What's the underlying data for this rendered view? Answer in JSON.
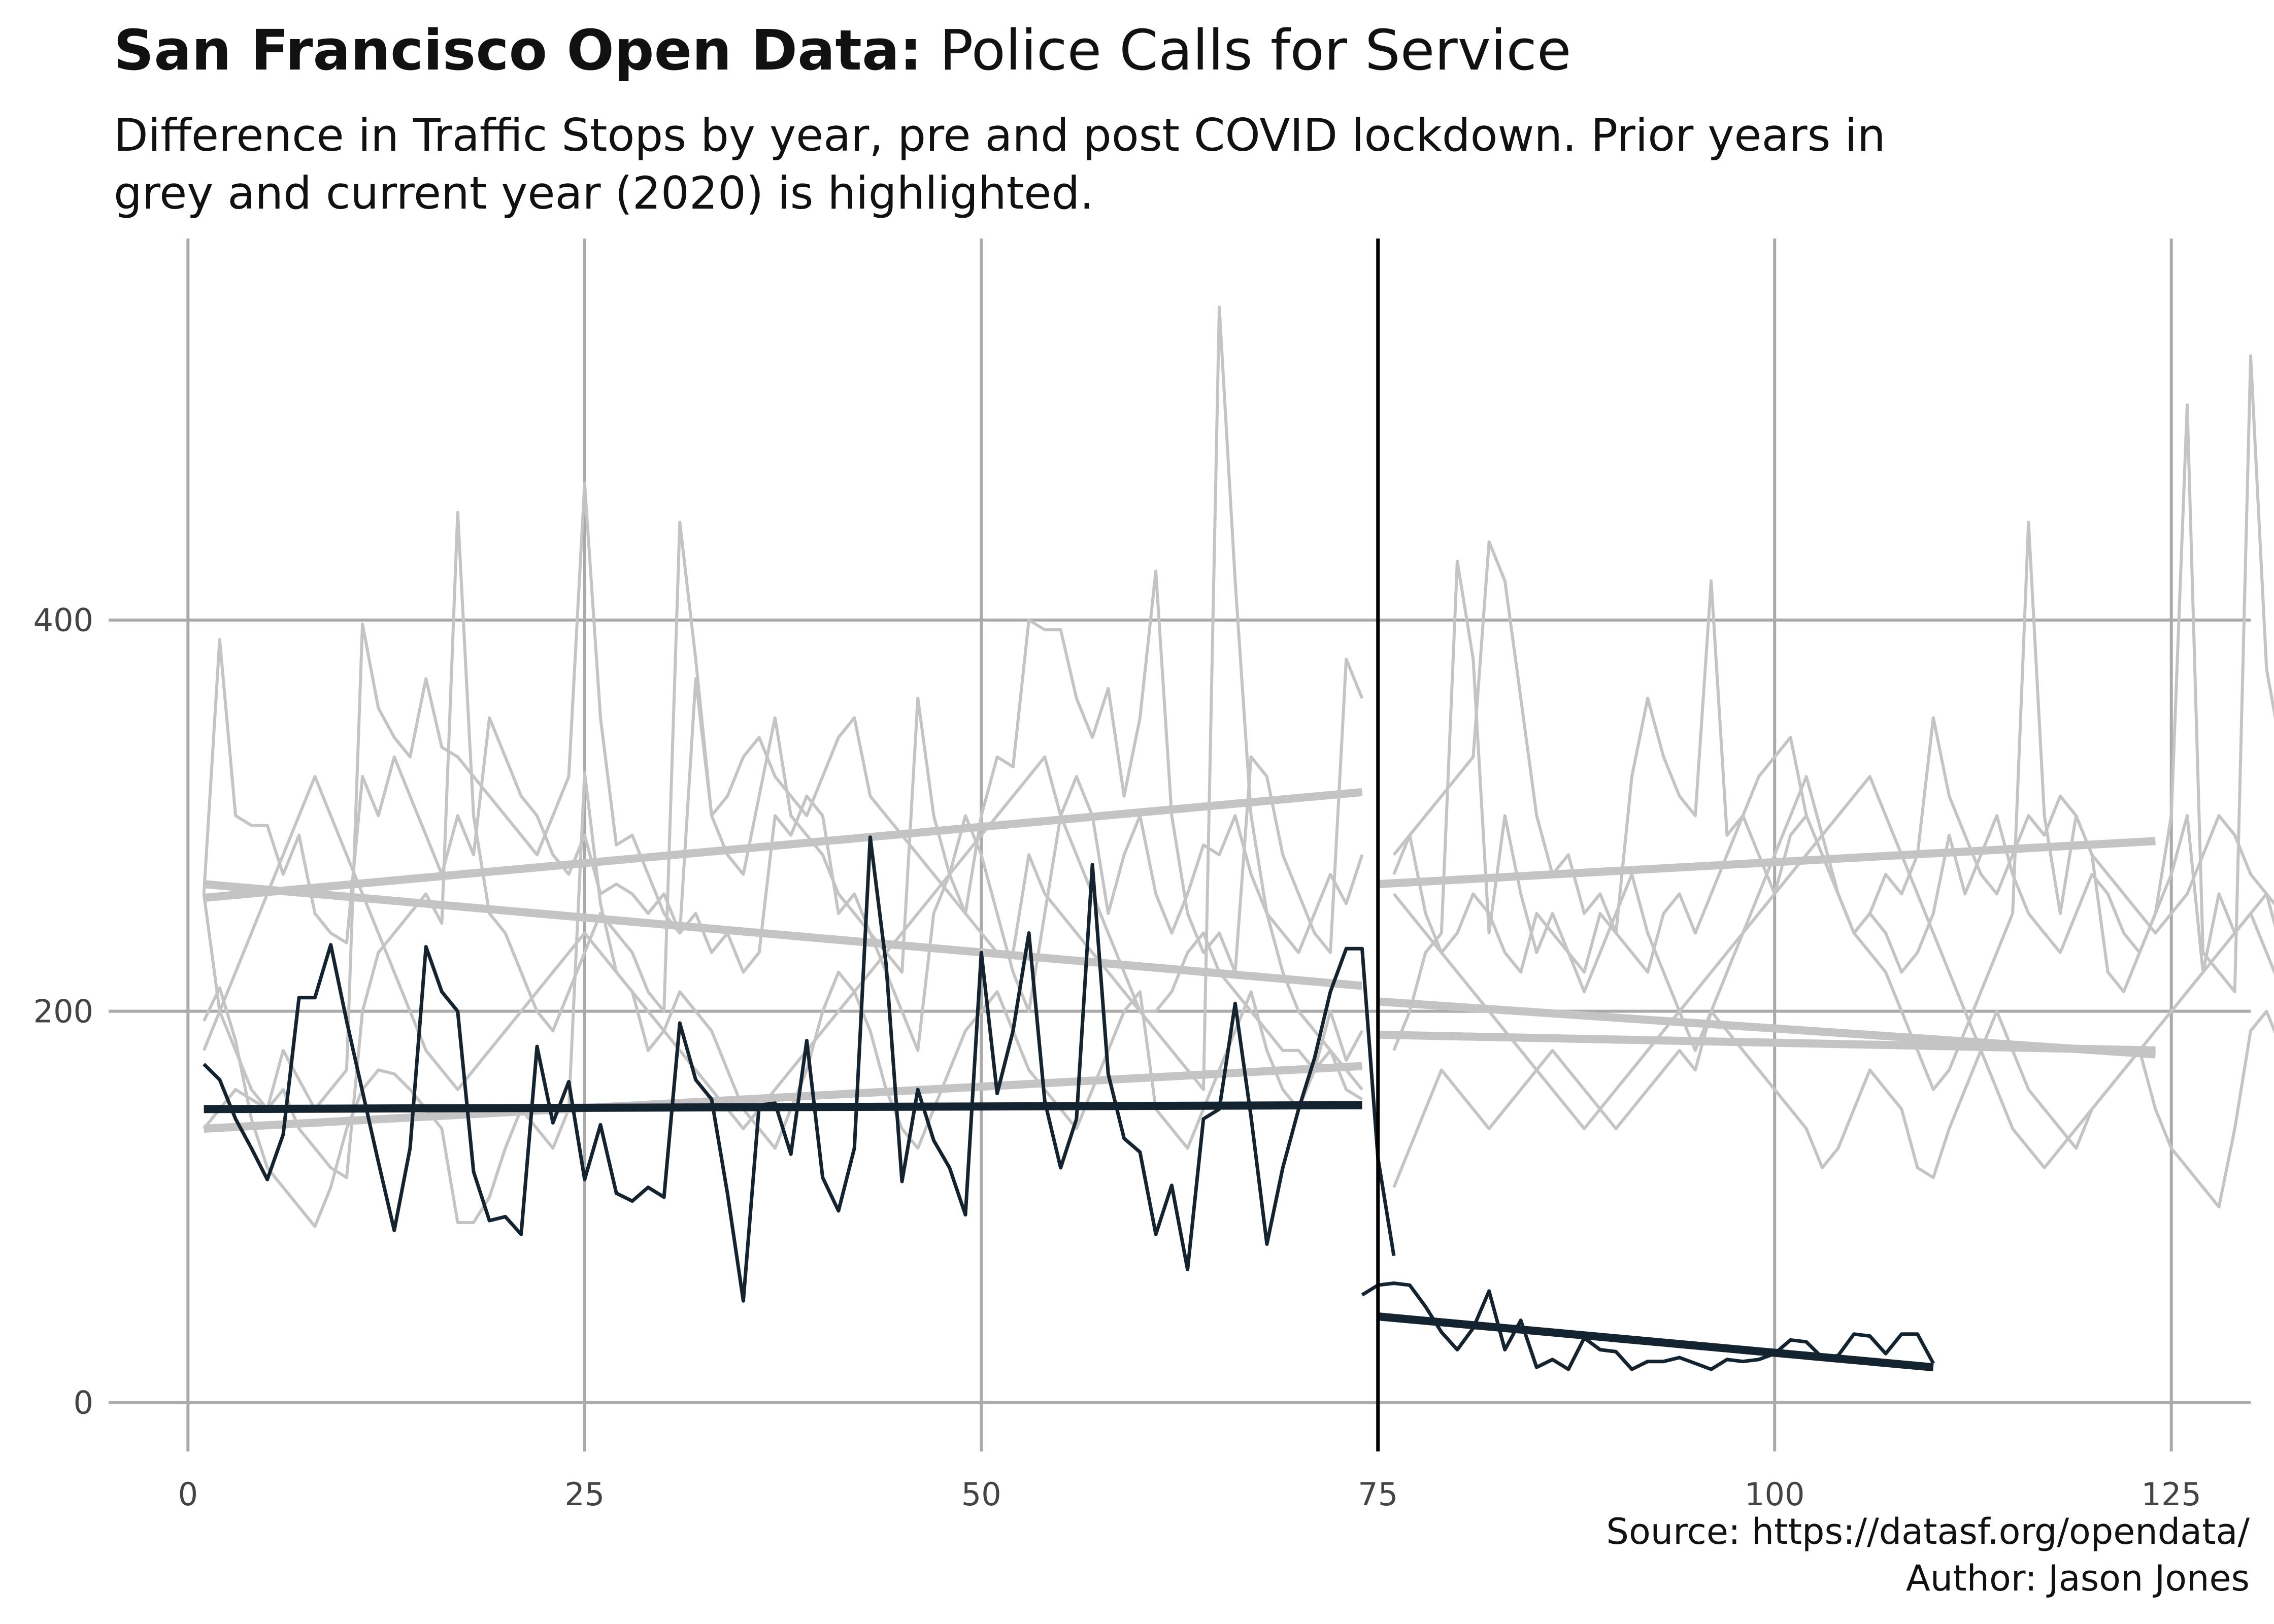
{
  "title_bold": "San Francisco Open Data:",
  "title_rest": " Police Calls for Service",
  "subtitle": "Difference in Traffic Stops by year, pre and post COVID lockdown. Prior years in grey and current year (2020) is highlighted.",
  "caption_line1": "Source: https://datasf.org/opendata/",
  "caption_line2": "Author: Jason Jones",
  "colors": {
    "prior": "#c4c4c4",
    "current": "#13232f",
    "grid": "#aaaaaa",
    "divider": "#000000"
  },
  "chart_data": {
    "type": "line",
    "xlim": [
      -5,
      130
    ],
    "ylim": [
      -25,
      595
    ],
    "x_ticks": [
      0,
      25,
      50,
      75,
      100,
      125
    ],
    "y_ticks": [
      0,
      200,
      400
    ],
    "grid": true,
    "legend": "none",
    "lockdown_x": 75,
    "prior_series": [
      {
        "pre": [
          195,
          212,
          185,
          145,
          120,
          110,
          100,
          90,
          110,
          140,
          160,
          170,
          168,
          160,
          150,
          140,
          92,
          92,
          105,
          130,
          150,
          140,
          130,
          150,
          322,
          255,
          220,
          210,
          180,
          190,
          210,
          200,
          190,
          170,
          150,
          140,
          130,
          150,
          170,
          200,
          220,
          210,
          190,
          160,
          140,
          130,
          150,
          170,
          190,
          200,
          210,
          190,
          170,
          160,
          150,
          140,
          160,
          180,
          200,
          210,
          150,
          140,
          130,
          150,
          170,
          190,
          210,
          180,
          160,
          150,
          170,
          200,
          175,
          190
        ],
        "post": [
          110,
          130,
          150,
          170,
          160,
          150,
          140,
          150,
          160,
          170,
          180,
          170,
          160,
          150,
          140,
          150,
          160,
          170,
          180,
          170,
          200,
          190,
          180,
          170,
          160,
          150,
          140,
          120,
          130,
          150,
          170,
          160,
          150,
          120,
          115,
          140,
          160,
          180,
          200,
          180,
          160,
          150,
          140,
          130,
          150,
          160,
          170,
          180,
          150,
          130,
          120,
          110,
          100,
          140,
          190,
          200,
          180,
          160,
          150,
          145
        ]
      },
      {
        "pre": [
          260,
          390,
          300,
          295,
          295,
          270,
          290,
          250,
          240,
          235,
          320,
          300,
          330,
          310,
          290,
          270,
          300,
          280,
          350,
          330,
          310,
          300,
          280,
          270,
          290,
          260,
          265,
          260,
          250,
          260,
          240,
          250,
          230,
          240,
          220,
          230,
          300,
          290,
          310,
          300,
          250,
          260,
          240,
          230,
          220,
          360,
          300,
          270,
          250,
          240,
          230,
          230,
          280,
          260,
          250,
          240,
          230,
          220,
          210,
          200,
          200,
          210,
          230,
          240,
          220,
          210,
          200,
          190,
          180,
          180,
          170,
          180,
          160,
          155
        ],
        "post": [
          270,
          290,
          250,
          230,
          240,
          260,
          250,
          230,
          220,
          250,
          240,
          230,
          220,
          250,
          240,
          230,
          220,
          250,
          260,
          240,
          260,
          280,
          300,
          280,
          260,
          290,
          300,
          280,
          260,
          240,
          250,
          240,
          220,
          230,
          250,
          290,
          260,
          280,
          300,
          270,
          250,
          240,
          230,
          250,
          270,
          260,
          240,
          230,
          250,
          270,
          300,
          220,
          260,
          240,
          250,
          230,
          210,
          240,
          220,
          215
        ]
      },
      {
        "pre": [
          260,
          200,
          180,
          160,
          150,
          180,
          165,
          150,
          160,
          170,
          398,
          355,
          340,
          330,
          370,
          335,
          330,
          320,
          310,
          300,
          290,
          280,
          300,
          320,
          470,
          350,
          285,
          290,
          270,
          250,
          240,
          370,
          300,
          310,
          330,
          340,
          320,
          310,
          300,
          320,
          340,
          350,
          310,
          300,
          290,
          280,
          270,
          260,
          250,
          300,
          330,
          325,
          400,
          395,
          395,
          360,
          340,
          365,
          310,
          350,
          425,
          300,
          250,
          230,
          240,
          220,
          330,
          320,
          280,
          260,
          240,
          230,
          380,
          360
        ],
        "post": [
          280,
          290,
          300,
          310,
          320,
          330,
          440,
          420,
          360,
          300,
          270,
          280,
          250,
          260,
          240,
          320,
          360,
          330,
          310,
          300,
          420,
          290,
          300,
          320,
          330,
          340,
          300,
          280,
          260,
          240,
          250,
          270,
          260,
          280,
          350,
          310,
          290,
          270,
          260,
          280,
          300,
          290,
          310,
          300,
          280,
          270,
          260,
          250,
          240,
          250,
          260,
          280,
          300,
          290,
          270,
          260,
          250,
          240,
          320,
          220
        ]
      },
      {
        "pre": [
          140,
          150,
          160,
          155,
          150,
          160,
          140,
          130,
          120,
          115,
          200,
          230,
          240,
          250,
          260,
          245,
          455,
          300,
          250,
          240,
          220,
          200,
          190,
          210,
          230,
          250,
          240,
          230,
          210,
          200,
          450,
          380,
          300,
          280,
          270,
          310,
          350,
          300,
          290,
          280,
          260,
          250,
          240,
          220,
          200,
          180,
          250,
          270,
          300,
          280,
          250,
          220,
          200,
          250,
          300,
          320,
          300,
          250,
          280,
          300,
          260,
          240,
          260,
          285,
          280,
          300,
          270,
          250,
          240,
          230,
          250,
          270,
          255,
          280
        ],
        "post": [
          180,
          200,
          230,
          240,
          430,
          380,
          240,
          300,
          260,
          230,
          250,
          230,
          210,
          230,
          250,
          270,
          240,
          220,
          200,
          180,
          200,
          220,
          240,
          260,
          280,
          300,
          320,
          290,
          260,
          240,
          230,
          220,
          200,
          180,
          160,
          170,
          190,
          210,
          230,
          250,
          450,
          300,
          250,
          300,
          280,
          220,
          210,
          230,
          250,
          300,
          510,
          230,
          220,
          210,
          535,
          375,
          330,
          300,
          220,
          180
        ]
      },
      {
        "pre": [
          180,
          200,
          220,
          240,
          260,
          280,
          300,
          320,
          300,
          280,
          260,
          240,
          220,
          200,
          180,
          170,
          160,
          170,
          180,
          190,
          200,
          210,
          220,
          230,
          240,
          230,
          220,
          210,
          200,
          190,
          180,
          170,
          160,
          150,
          140,
          150,
          160,
          170,
          180,
          190,
          200,
          210,
          220,
          230,
          240,
          250,
          260,
          270,
          280,
          290,
          300,
          310,
          320,
          330,
          300,
          280,
          260,
          240,
          220,
          200,
          190,
          180,
          170,
          160,
          560,
          420,
          300,
          250,
          220,
          200,
          190,
          180,
          170,
          160
        ],
        "post": [
          260,
          250,
          240,
          230,
          220,
          210,
          200,
          190,
          180,
          170,
          160,
          150,
          140,
          150,
          160,
          170,
          180,
          190,
          200,
          210,
          220,
          230,
          240,
          250,
          260,
          270,
          280,
          290,
          300,
          310,
          320,
          300,
          280,
          260,
          240,
          220,
          200,
          180,
          160,
          140,
          130,
          120,
          130,
          140,
          150,
          160,
          170,
          180,
          190,
          200,
          210,
          220,
          230,
          240,
          250,
          260,
          230,
          200,
          180,
          160
        ]
      }
    ],
    "prior_trends": [
      {
        "pre": [
          [
            1,
            265
          ],
          [
            74,
            213
          ]
        ],
        "post": [
          [
            75,
            188
          ],
          [
            124,
            180
          ]
        ]
      },
      {
        "pre": [
          [
            1,
            258
          ],
          [
            74,
            312
          ]
        ],
        "post": [
          [
            75,
            265
          ],
          [
            124,
            287
          ]
        ]
      },
      {
        "pre": [
          [
            1,
            140
          ],
          [
            74,
            172
          ]
        ],
        "post": [
          [
            75,
            205
          ],
          [
            124,
            178
          ]
        ]
      }
    ],
    "current_series": {
      "name": "2020",
      "pre": [
        173,
        165,
        145,
        130,
        114,
        137,
        207,
        207,
        234,
        195,
        159,
        123,
        88,
        130,
        233,
        210,
        200,
        118,
        93,
        95,
        86,
        182,
        143,
        164,
        114,
        142,
        107,
        103,
        110,
        105,
        194,
        165,
        155,
        107,
        52,
        152,
        153,
        127,
        185,
        115,
        98,
        130,
        289,
        224,
        113,
        160,
        134,
        120,
        96,
        230,
        158,
        190,
        240,
        154,
        120,
        145,
        275,
        168,
        135,
        128,
        86,
        111,
        68,
        145,
        150,
        204,
        146,
        81,
        120,
        150,
        176,
        210,
        232,
        232,
        125,
        75
      ],
      "post": [
        55,
        60,
        61,
        60,
        49,
        36,
        27,
        38,
        57,
        27,
        42,
        18,
        22,
        17,
        33,
        27,
        26,
        17,
        21,
        21,
        23,
        20,
        17,
        22,
        21,
        22,
        25,
        32,
        31,
        23,
        24,
        35,
        34,
        25,
        35,
        35,
        20
      ]
    },
    "current_trends": {
      "pre": [
        [
          1,
          150
        ],
        [
          74,
          152
        ]
      ],
      "post": [
        [
          75,
          44
        ],
        [
          110,
          18
        ]
      ]
    }
  }
}
